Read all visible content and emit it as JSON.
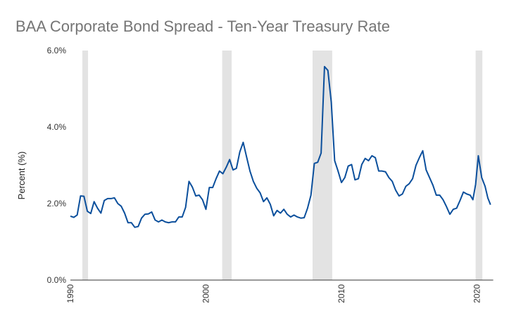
{
  "chart_data": {
    "type": "line",
    "title": "BAA Corporate Bond Spread - Ten-Year Treasury Rate",
    "y_label": "Percent (%)",
    "xlim": [
      1990,
      2021.2
    ],
    "xticks": [
      1990,
      2000,
      2010,
      2020
    ],
    "ylim": [
      0,
      6
    ],
    "yticks": [
      {
        "value": 0,
        "label": "0.0%"
      },
      {
        "value": 2,
        "label": "2.0%"
      },
      {
        "value": 4,
        "label": "4.0%"
      },
      {
        "value": 6,
        "label": "6.0%"
      }
    ],
    "grid": false,
    "recessions": [
      [
        1990.88,
        1991.3
      ],
      [
        2001.2,
        2001.9
      ],
      [
        2007.87,
        2009.32
      ],
      [
        2019.9,
        2020.4
      ]
    ],
    "recession_color": "#e3e3e3",
    "series": [
      {
        "color": "#0b4f9c",
        "x": [
          1990,
          1990.25,
          1990.5,
          1990.75,
          1991,
          1991.25,
          1991.5,
          1991.75,
          1992,
          1992.25,
          1992.5,
          1992.75,
          1993,
          1993.25,
          1993.5,
          1993.75,
          1994,
          1994.25,
          1994.5,
          1994.75,
          1995,
          1995.25,
          1995.5,
          1995.75,
          1996,
          1996.25,
          1996.5,
          1996.75,
          1997,
          1997.25,
          1997.5,
          1997.75,
          1998,
          1998.25,
          1998.5,
          1998.75,
          1999,
          1999.25,
          1999.5,
          1999.75,
          2000,
          2000.25,
          2000.5,
          2000.75,
          2001,
          2001.25,
          2001.5,
          2001.75,
          2002,
          2002.25,
          2002.5,
          2002.75,
          2003,
          2003.25,
          2003.5,
          2003.75,
          2004,
          2004.25,
          2004.5,
          2004.75,
          2005,
          2005.25,
          2005.5,
          2005.75,
          2006,
          2006.25,
          2006.5,
          2006.75,
          2007,
          2007.25,
          2007.5,
          2007.75,
          2008,
          2008.25,
          2008.5,
          2008.75,
          2009,
          2009.25,
          2009.5,
          2009.75,
          2010,
          2010.25,
          2010.5,
          2010.75,
          2011,
          2011.25,
          2011.5,
          2011.75,
          2012,
          2012.25,
          2012.5,
          2012.75,
          2013,
          2013.25,
          2013.5,
          2013.75,
          2014,
          2014.25,
          2014.5,
          2014.75,
          2015,
          2015.25,
          2015.5,
          2015.75,
          2016,
          2016.25,
          2016.5,
          2016.75,
          2017,
          2017.25,
          2017.5,
          2017.75,
          2018,
          2018.25,
          2018.5,
          2018.75,
          2019,
          2019.25,
          2019.5,
          2019.7,
          2019.9,
          2020.1,
          2020.35,
          2020.6,
          2020.8,
          2021
        ],
        "values": [
          1.67,
          1.64,
          1.7,
          2.2,
          2.19,
          1.8,
          1.74,
          2.05,
          1.88,
          1.75,
          2.08,
          2.13,
          2.13,
          2.15,
          2.0,
          1.93,
          1.75,
          1.5,
          1.5,
          1.38,
          1.4,
          1.62,
          1.72,
          1.73,
          1.78,
          1.57,
          1.52,
          1.57,
          1.52,
          1.5,
          1.52,
          1.52,
          1.65,
          1.65,
          1.9,
          2.58,
          2.43,
          2.2,
          2.22,
          2.1,
          1.85,
          2.42,
          2.42,
          2.65,
          2.85,
          2.78,
          2.95,
          3.15,
          2.88,
          2.92,
          3.35,
          3.6,
          3.22,
          2.85,
          2.58,
          2.4,
          2.28,
          2.05,
          2.15,
          1.98,
          1.68,
          1.82,
          1.75,
          1.85,
          1.72,
          1.65,
          1.7,
          1.65,
          1.62,
          1.63,
          1.88,
          2.22,
          3.05,
          3.08,
          3.32,
          5.58,
          5.48,
          4.65,
          3.12,
          2.85,
          2.55,
          2.68,
          2.98,
          3.02,
          2.62,
          2.65,
          3.02,
          3.18,
          3.12,
          3.25,
          3.2,
          2.85,
          2.85,
          2.83,
          2.68,
          2.58,
          2.35,
          2.2,
          2.25,
          2.45,
          2.52,
          2.65,
          3.0,
          3.2,
          3.38,
          2.88,
          2.68,
          2.48,
          2.22,
          2.22,
          2.1,
          1.92,
          1.72,
          1.85,
          1.88,
          2.08,
          2.3,
          2.25,
          2.22,
          2.1,
          2.5,
          3.25,
          2.68,
          2.45,
          2.15,
          1.97
        ]
      }
    ]
  }
}
